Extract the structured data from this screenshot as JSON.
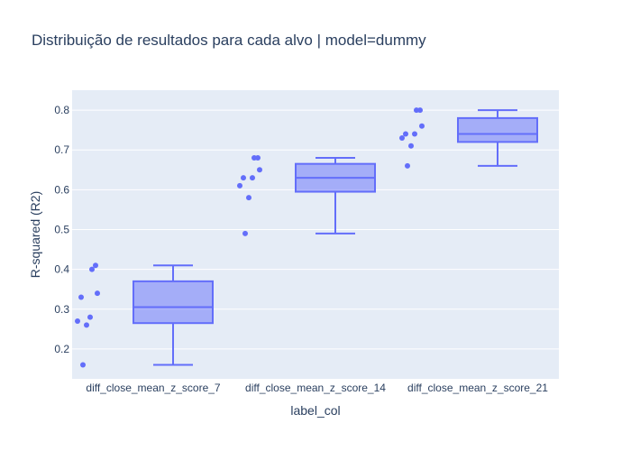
{
  "chart_data": {
    "type": "box",
    "title": "Distribuição de resultados para cada alvo | model=dummy",
    "xlabel": "label_col",
    "ylabel": "R-squared (R2)",
    "ylim": [
      0.125,
      0.85
    ],
    "yticks": [
      0.2,
      0.3,
      0.4,
      0.5,
      0.6,
      0.7,
      0.8
    ],
    "ytick_labels": [
      "0.2",
      "0.3",
      "0.4",
      "0.5",
      "0.6",
      "0.7",
      "0.8"
    ],
    "grid": true,
    "colors": {
      "box_line": "#636efa",
      "box_fill": "rgba(99,110,250,0.5)",
      "plot_bg": "#e5ecf6",
      "grid": "#ffffff",
      "text": "#2a3f5f"
    },
    "categories": [
      "diff_close_mean_z_score_7",
      "diff_close_mean_z_score_14",
      "diff_close_mean_z_score_21"
    ],
    "boxes": [
      {
        "category": "diff_close_mean_z_score_7",
        "min": 0.16,
        "q1": 0.265,
        "median": 0.305,
        "q3": 0.37,
        "max": 0.41,
        "points": [
          0.41,
          0.4,
          0.34,
          0.33,
          0.28,
          0.27,
          0.26,
          0.16
        ]
      },
      {
        "category": "diff_close_mean_z_score_14",
        "min": 0.49,
        "q1": 0.595,
        "median": 0.63,
        "q3": 0.665,
        "max": 0.68,
        "points": [
          0.68,
          0.68,
          0.65,
          0.63,
          0.63,
          0.61,
          0.58,
          0.49
        ]
      },
      {
        "category": "diff_close_mean_z_score_21",
        "min": 0.66,
        "q1": 0.72,
        "median": 0.74,
        "q3": 0.78,
        "max": 0.8,
        "points": [
          0.8,
          0.8,
          0.76,
          0.74,
          0.74,
          0.73,
          0.71,
          0.66
        ]
      }
    ]
  }
}
